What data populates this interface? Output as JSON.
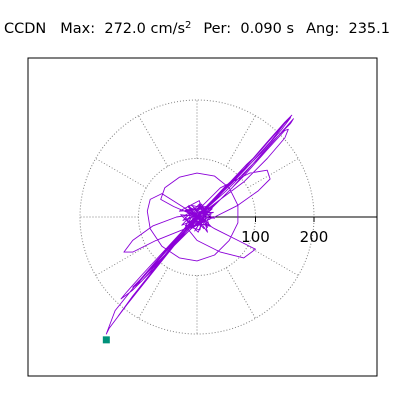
{
  "header": {
    "station": "CCDN",
    "max_label": "Max:",
    "max_value": "272.0",
    "unit_base": "cm/s",
    "unit_exp": "2",
    "per_label": "Per:",
    "per_value": "0.090 s",
    "ang_label": "Ang:",
    "ang_value": "235.1"
  },
  "colors": {
    "trace": "#8b00d8",
    "marker": "#00917a",
    "grid": "#808080",
    "frame": "#000000"
  },
  "chart_data": {
    "type": "scatter",
    "title": "",
    "xlabel": "",
    "ylabel": "",
    "polar_rings": [
      100,
      200
    ],
    "axis_ticks": [
      {
        "value": 100,
        "label": "100"
      },
      {
        "value": 200,
        "label": "200"
      }
    ],
    "axis_max": 272,
    "grid": "dotted polar, 30° spokes",
    "marker": {
      "x": -155,
      "y": -210
    },
    "trace": [
      [
        0,
        0
      ],
      [
        -8,
        5
      ],
      [
        12,
        -6
      ],
      [
        -15,
        -10
      ],
      [
        18,
        14
      ],
      [
        -10,
        20
      ],
      [
        22,
        -4
      ],
      [
        -20,
        -15
      ],
      [
        5,
        -22
      ],
      [
        14,
        18
      ],
      [
        -18,
        9
      ],
      [
        24,
        4
      ],
      [
        -6,
        -18
      ],
      [
        -22,
        2
      ],
      [
        10,
        20
      ],
      [
        20,
        -12
      ],
      [
        -14,
        -16
      ],
      [
        6,
        24
      ],
      [
        -24,
        -6
      ],
      [
        16,
        10
      ],
      [
        -4,
        -24
      ],
      [
        22,
        16
      ],
      [
        -20,
        12
      ],
      [
        12,
        -20
      ],
      [
        -10,
        6
      ],
      [
        28,
        8
      ],
      [
        -26,
        -14
      ],
      [
        8,
        22
      ],
      [
        18,
        -18
      ],
      [
        -16,
        18
      ],
      [
        30,
        -2
      ],
      [
        -28,
        4
      ],
      [
        2,
        -26
      ],
      [
        20,
        22
      ],
      [
        -22,
        -20
      ],
      [
        14,
        -8
      ],
      [
        -6,
        16
      ],
      [
        24,
        -16
      ],
      [
        -18,
        -6
      ],
      [
        10,
        12
      ],
      [
        -12,
        -22
      ],
      [
        26,
        14
      ],
      [
        -30,
        10
      ],
      [
        4,
        28
      ],
      [
        18,
        -26
      ],
      [
        -14,
        20
      ],
      [
        0,
        -10
      ],
      [
        -6,
        8
      ],
      [
        8,
        -4
      ],
      [
        0,
        0
      ],
      [
        40,
        30
      ],
      [
        80,
        60
      ],
      [
        120,
        100
      ],
      [
        150,
        135
      ],
      [
        156,
        150
      ],
      [
        150,
        148
      ],
      [
        120,
        115
      ],
      [
        80,
        70
      ],
      [
        40,
        30
      ],
      [
        0,
        -5
      ],
      [
        -40,
        -50
      ],
      [
        -70,
        -80
      ],
      [
        -90,
        -100
      ],
      [
        -110,
        -120
      ],
      [
        -95,
        -110
      ],
      [
        -60,
        -70
      ],
      [
        -20,
        -30
      ],
      [
        20,
        10
      ],
      [
        60,
        50
      ],
      [
        95,
        90
      ],
      [
        130,
        130
      ],
      [
        160,
        160
      ],
      [
        165,
        168
      ],
      [
        140,
        140
      ],
      [
        100,
        95
      ],
      [
        50,
        45
      ],
      [
        0,
        0
      ],
      [
        -50,
        -55
      ],
      [
        -100,
        -110
      ],
      [
        -140,
        -160
      ],
      [
        -155,
        -200
      ],
      [
        -150,
        -190
      ],
      [
        -120,
        -150
      ],
      [
        -80,
        -100
      ],
      [
        -40,
        -50
      ],
      [
        -10,
        -12
      ],
      [
        30,
        28
      ],
      [
        70,
        70
      ],
      [
        110,
        110
      ],
      [
        145,
        150
      ],
      [
        160,
        170
      ],
      [
        145,
        155
      ],
      [
        110,
        115
      ],
      [
        65,
        65
      ],
      [
        20,
        18
      ],
      [
        -25,
        -30
      ],
      [
        -70,
        -85
      ],
      [
        -110,
        -135
      ],
      [
        -135,
        -170
      ],
      [
        -120,
        -150
      ],
      [
        -85,
        -105
      ],
      [
        -45,
        -55
      ],
      [
        -10,
        -10
      ],
      [
        25,
        25
      ],
      [
        60,
        58
      ],
      [
        95,
        95
      ],
      [
        125,
        128
      ],
      [
        150,
        160
      ],
      [
        162,
        174
      ],
      [
        150,
        162
      ],
      [
        120,
        128
      ],
      [
        80,
        82
      ],
      [
        40,
        40
      ],
      [
        0,
        0
      ],
      [
        -35,
        -40
      ],
      [
        -75,
        -90
      ],
      [
        -110,
        -125
      ],
      [
        -130,
        -140
      ],
      [
        -120,
        -128
      ],
      [
        -95,
        -100
      ],
      [
        -60,
        -62
      ],
      [
        -25,
        -24
      ],
      [
        10,
        12
      ],
      [
        45,
        48
      ],
      [
        80,
        82
      ],
      [
        100,
        104
      ],
      [
        85,
        90
      ],
      [
        55,
        58
      ],
      [
        20,
        20
      ],
      [
        -15,
        -18
      ],
      [
        -52,
        -58
      ],
      [
        -85,
        -95
      ],
      [
        -105,
        -118
      ],
      [
        -98,
        -108
      ],
      [
        -72,
        -78
      ],
      [
        -40,
        -42
      ],
      [
        -8,
        -6
      ],
      [
        20,
        22
      ],
      [
        48,
        52
      ],
      [
        70,
        72
      ],
      [
        52,
        54
      ],
      [
        25,
        26
      ],
      [
        0,
        2
      ],
      [
        -60,
        40
      ],
      [
        -80,
        30
      ],
      [
        -85,
        10
      ],
      [
        -80,
        -20
      ],
      [
        -60,
        -50
      ],
      [
        -30,
        -70
      ],
      [
        0,
        -75
      ],
      [
        30,
        -65
      ],
      [
        55,
        -40
      ],
      [
        70,
        -10
      ],
      [
        70,
        20
      ],
      [
        55,
        50
      ],
      [
        30,
        70
      ],
      [
        0,
        75
      ],
      [
        -30,
        68
      ],
      [
        -55,
        50
      ],
      [
        -62,
        30
      ],
      [
        -40,
        18
      ],
      [
        -10,
        5
      ],
      [
        30,
        -20
      ],
      [
        70,
        -40
      ],
      [
        100,
        -55
      ],
      [
        80,
        -70
      ],
      [
        40,
        -60
      ],
      [
        0,
        -40
      ],
      [
        -20,
        -15
      ],
      [
        -5,
        5
      ],
      [
        40,
        50
      ],
      [
        90,
        75
      ],
      [
        120,
        80
      ],
      [
        125,
        65
      ],
      [
        105,
        45
      ],
      [
        70,
        20
      ],
      [
        30,
        0
      ],
      [
        -20,
        -20
      ],
      [
        -70,
        -40
      ],
      [
        -110,
        -60
      ],
      [
        -125,
        -60
      ],
      [
        -110,
        -40
      ],
      [
        -75,
        -15
      ],
      [
        -35,
        0
      ],
      [
        0,
        5
      ],
      [
        -2,
        -3
      ],
      [
        3,
        2
      ],
      [
        0,
        0
      ]
    ]
  }
}
